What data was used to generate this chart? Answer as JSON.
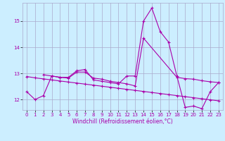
{
  "xlabel": "Windchill (Refroidissement éolien,°C)",
  "background_color": "#cceeff",
  "grid_color": "#aaaacc",
  "line_color": "#aa00aa",
  "xlim": [
    -0.5,
    23.5
  ],
  "ylim": [
    11.6,
    15.7
  ],
  "yticks": [
    12,
    13,
    14,
    15
  ],
  "xticks": [
    0,
    1,
    2,
    3,
    4,
    5,
    6,
    7,
    8,
    9,
    10,
    11,
    12,
    13,
    14,
    15,
    16,
    17,
    18,
    19,
    20,
    21,
    22,
    23
  ],
  "series1_x": [
    0,
    1,
    2,
    3,
    4,
    5,
    6,
    7,
    8,
    9,
    10,
    11,
    12,
    13,
    14,
    15,
    16,
    17,
    18,
    19,
    20,
    21,
    22,
    23
  ],
  "series1_y": [
    12.3,
    12.0,
    12.15,
    12.9,
    12.85,
    12.85,
    13.1,
    13.15,
    12.75,
    12.7,
    12.65,
    12.6,
    12.9,
    12.9,
    15.0,
    15.5,
    14.6,
    14.2,
    12.9,
    11.7,
    11.75,
    11.65,
    12.3,
    12.65
  ],
  "series2_x": [
    2,
    3,
    4,
    5,
    6,
    7,
    8,
    9,
    10,
    11,
    12,
    13,
    14,
    18,
    19,
    20,
    21,
    22,
    23
  ],
  "series2_y": [
    12.95,
    12.9,
    12.85,
    12.82,
    13.05,
    13.05,
    12.82,
    12.78,
    12.7,
    12.65,
    12.6,
    12.52,
    14.35,
    12.85,
    12.8,
    12.78,
    12.72,
    12.68,
    12.65
  ],
  "series3_x": [
    0,
    1,
    2,
    3,
    4,
    5,
    6,
    7,
    8,
    9,
    10,
    11,
    12,
    13,
    14,
    15,
    16,
    17,
    18,
    19,
    20,
    21,
    22,
    23
  ],
  "series3_y": [
    12.88,
    12.83,
    12.79,
    12.75,
    12.71,
    12.67,
    12.63,
    12.59,
    12.55,
    12.51,
    12.47,
    12.43,
    12.39,
    12.35,
    12.31,
    12.27,
    12.23,
    12.19,
    12.15,
    12.11,
    12.07,
    12.03,
    11.99,
    11.95
  ]
}
